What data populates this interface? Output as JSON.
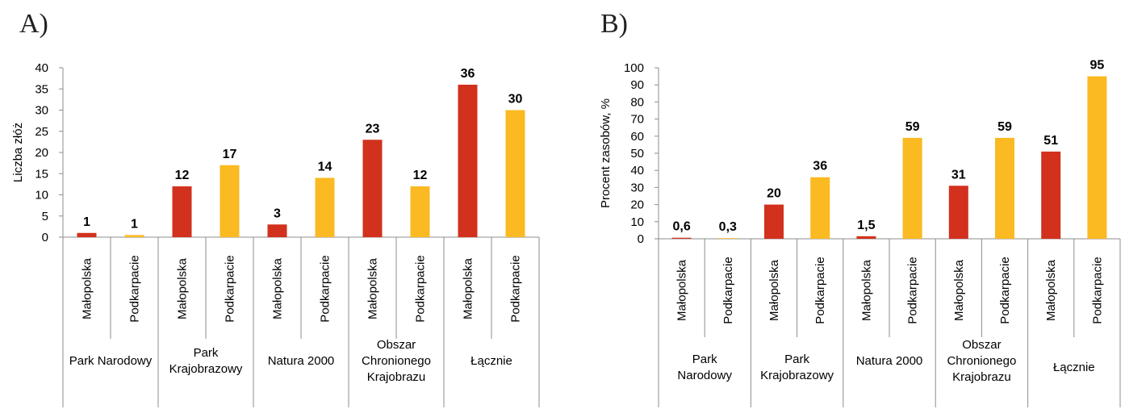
{
  "colors": {
    "malopolska": "#d1311d",
    "podkarpacie": "#fbb922",
    "axis": "#8c8c8c"
  },
  "chart_data": [
    {
      "type": "bar",
      "panel": "A)",
      "ylabel": "Liczba złóż",
      "ylim": [
        0,
        40
      ],
      "yticks": [
        0,
        5,
        10,
        15,
        20,
        25,
        30,
        35,
        40
      ],
      "categories": [
        {
          "region": "Małopolska",
          "group": "Park Narodowy",
          "value": 1,
          "label": "1",
          "series": "malopolska"
        },
        {
          "region": "Podkarpacie",
          "group": "Park Narodowy",
          "value": 0.5,
          "label": "1",
          "series": "podkarpacie"
        },
        {
          "region": "Małopolska",
          "group": "Park Krajobrazowy",
          "value": 12,
          "label": "12",
          "series": "malopolska"
        },
        {
          "region": "Podkarpacie",
          "group": "Park Krajobrazowy",
          "value": 17,
          "label": "17",
          "series": "podkarpacie"
        },
        {
          "region": "Małopolska",
          "group": "Natura 2000",
          "value": 3,
          "label": "3",
          "series": "malopolska"
        },
        {
          "region": "Podkarpacie",
          "group": "Natura 2000",
          "value": 14,
          "label": "14",
          "series": "podkarpacie"
        },
        {
          "region": "Małopolska",
          "group": "Obszar Chronionego Krajobrazu",
          "value": 23,
          "label": "23",
          "series": "malopolska"
        },
        {
          "region": "Podkarpacie",
          "group": "Obszar Chronionego Krajobrazu",
          "value": 12,
          "label": "12",
          "series": "podkarpacie"
        },
        {
          "region": "Małopolska",
          "group": "Łącznie",
          "value": 36,
          "label": "36",
          "series": "malopolska"
        },
        {
          "region": "Podkarpacie",
          "group": "Łącznie",
          "value": 30,
          "label": "30",
          "series": "podkarpacie"
        }
      ],
      "groups": [
        {
          "lines": [
            "Park Narodowy"
          ]
        },
        {
          "lines": [
            "Park",
            "Krajobrazowy"
          ]
        },
        {
          "lines": [
            "Natura 2000"
          ]
        },
        {
          "lines": [
            "Obszar",
            "Chronionego",
            "Krajobrazu"
          ]
        },
        {
          "lines": [
            "Łącznie"
          ]
        }
      ]
    },
    {
      "type": "bar",
      "panel": "B)",
      "ylabel": "Procent zasobów, %",
      "ylim": [
        0,
        100
      ],
      "yticks": [
        0,
        10,
        20,
        30,
        40,
        50,
        60,
        70,
        80,
        90,
        100
      ],
      "categories": [
        {
          "region": "Małopolska",
          "group": "Park Narodowy",
          "value": 0.6,
          "label": "0,6",
          "series": "malopolska"
        },
        {
          "region": "Podkarpacie",
          "group": "Park Narodowy",
          "value": 0.3,
          "label": "0,3",
          "series": "podkarpacie"
        },
        {
          "region": "Małopolska",
          "group": "Park Krajobrazowy",
          "value": 20,
          "label": "20",
          "series": "malopolska"
        },
        {
          "region": "Podkarpacie",
          "group": "Park Krajobrazowy",
          "value": 36,
          "label": "36",
          "series": "podkarpacie"
        },
        {
          "region": "Małopolska",
          "group": "Natura 2000",
          "value": 1.5,
          "label": "1,5",
          "series": "malopolska"
        },
        {
          "region": "Podkarpacie",
          "group": "Natura 2000",
          "value": 59,
          "label": "59",
          "series": "podkarpacie"
        },
        {
          "region": "Małopolska",
          "group": "Obszar Chronionego Krajobrazu",
          "value": 31,
          "label": "31",
          "series": "malopolska"
        },
        {
          "region": "Podkarpacie",
          "group": "Obszar Chronionego Krajobrazu",
          "value": 59,
          "label": "59",
          "series": "podkarpacie"
        },
        {
          "region": "Małopolska",
          "group": "Łącznie",
          "value": 51,
          "label": "51",
          "series": "malopolska"
        },
        {
          "region": "Podkarpacie",
          "group": "Łącznie",
          "value": 95,
          "label": "95",
          "series": "podkarpacie"
        }
      ],
      "groups": [
        {
          "lines": [
            "Park",
            "Narodowy"
          ]
        },
        {
          "lines": [
            "Park",
            "Krajobrazowy"
          ]
        },
        {
          "lines": [
            "Natura 2000"
          ]
        },
        {
          "lines": [
            "Obszar",
            "Chronionego",
            "Krajobrazu"
          ]
        },
        {
          "lines": [
            "Łącznie"
          ]
        }
      ]
    }
  ]
}
